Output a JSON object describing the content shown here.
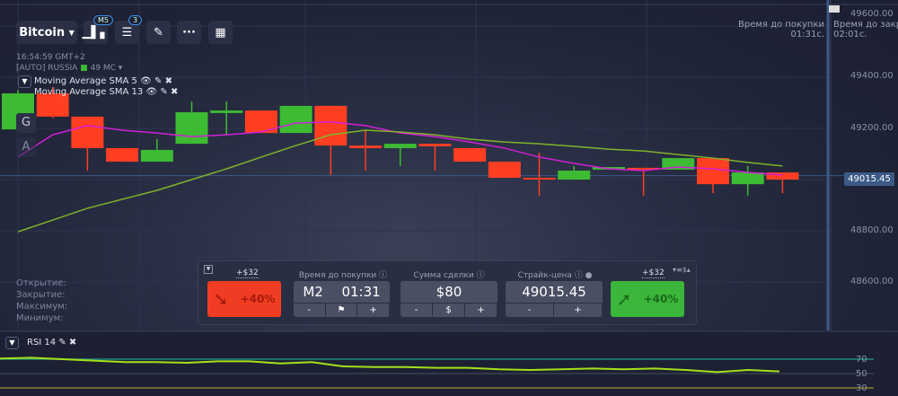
{
  "toolbar": {
    "asset": "Bitcoin",
    "timeframe_badge": "M5",
    "indicators_badge": "3"
  },
  "info": {
    "time": "16:54:59 GMT+2",
    "server": "[AUTO] RUSSIA",
    "ping": "49 MC"
  },
  "indicators": [
    {
      "label": "Moving Average SMA 5",
      "color": "#d21fd6"
    },
    {
      "label": "Moving Average SMA 13",
      "color": "#7fb32a"
    }
  ],
  "side_buttons": [
    "G",
    "A"
  ],
  "ohlc_labels": [
    "Открытие:",
    "Закрытие:",
    "Максимум:",
    "Минимум:"
  ],
  "timers": {
    "buy_label": "Время до покупки",
    "buy_value": "01:31c.",
    "close_label": "Время до закр",
    "close_value": "02:01c."
  },
  "price_axis": [
    "49600.00",
    "49400.00",
    "49200.00",
    "49000.00",
    "48800.00",
    "48600.00"
  ],
  "current_price": "49015.45",
  "panel": {
    "down": {
      "payout": "+$32",
      "percent": "+40%"
    },
    "up": {
      "payout": "+$32",
      "percent": "+40%"
    },
    "time": {
      "label": "Время до покупки",
      "mode": "M2",
      "value": "01:31",
      "minus": "-",
      "plus": "+"
    },
    "amount": {
      "label": "Сумма сделки",
      "value": "$80",
      "minus": "-",
      "mid": "$",
      "plus": "+"
    },
    "strike": {
      "label": "Страйк-цена",
      "value": "49015.45",
      "minus": "-",
      "plus": "+"
    }
  },
  "rsi": {
    "label": "RSI 14",
    "levels": [
      "70",
      "50",
      "30"
    ],
    "values": [
      71,
      72,
      70,
      68,
      66,
      66,
      65,
      67,
      67,
      64,
      66,
      60,
      59,
      59,
      58,
      58,
      56,
      55,
      56,
      57,
      56,
      57,
      55,
      52,
      55,
      53
    ]
  },
  "colors": {
    "up": "#3dbb33",
    "down": "#ff3e22",
    "sma5": "#d21fd6",
    "sma13": "#7fb32a",
    "rsi": "#a4e01a"
  },
  "chart_data": {
    "type": "candlestick",
    "ylim": [
      48450,
      49650
    ],
    "candles": [
      {
        "o": 49196,
        "c": 49337,
        "h": 49350,
        "l": 49190
      },
      {
        "o": 49337,
        "c": 49246,
        "h": 49361,
        "l": 49240
      },
      {
        "o": 49246,
        "c": 49123,
        "h": 49246,
        "l": 49035
      },
      {
        "o": 49123,
        "c": 49070,
        "h": 49123,
        "l": 49070
      },
      {
        "o": 49070,
        "c": 49116,
        "h": 49158,
        "l": 49070
      },
      {
        "o": 49140,
        "c": 49263,
        "h": 49305,
        "l": 49140
      },
      {
        "o": 49260,
        "c": 49270,
        "h": 49305,
        "l": 49175
      },
      {
        "o": 49270,
        "c": 49182,
        "h": 49270,
        "l": 49182
      },
      {
        "o": 49182,
        "c": 49288,
        "h": 49288,
        "l": 49182
      },
      {
        "o": 49288,
        "c": 49133,
        "h": 49288,
        "l": 49018
      },
      {
        "o": 49133,
        "c": 49123,
        "h": 49193,
        "l": 49035
      },
      {
        "o": 49123,
        "c": 49140,
        "h": 49140,
        "l": 49053
      },
      {
        "o": 49140,
        "c": 49130,
        "h": 49140,
        "l": 49035
      },
      {
        "o": 49123,
        "c": 49070,
        "h": 49123,
        "l": 49070
      },
      {
        "o": 49070,
        "c": 49007,
        "h": 49070,
        "l": 49007
      },
      {
        "o": 49007,
        "c": 49000,
        "h": 49105,
        "l": 48937
      },
      {
        "o": 49000,
        "c": 49035,
        "h": 49053,
        "l": 49000
      },
      {
        "o": 49039,
        "c": 49049,
        "h": 49049,
        "l": 49039
      },
      {
        "o": 49046,
        "c": 49039,
        "h": 49046,
        "l": 48937
      },
      {
        "o": 49039,
        "c": 49084,
        "h": 49084,
        "l": 49039
      },
      {
        "o": 49084,
        "c": 48982,
        "h": 49084,
        "l": 48947
      },
      {
        "o": 48982,
        "c": 49028,
        "h": 49053,
        "l": 48937
      },
      {
        "o": 49028,
        "c": 49000,
        "h": 49028,
        "l": 48947
      }
    ],
    "sma5": [
      49088,
      49175,
      49211,
      49193,
      49182,
      49168,
      49175,
      49186,
      49221,
      49225,
      49211,
      49182,
      49168,
      49147,
      49123,
      49088,
      49063,
      49042,
      49035,
      49049,
      49042,
      49028,
      49018
    ],
    "sma13": [
      48796,
      48842,
      48888,
      48923,
      48958,
      49000,
      49042,
      49088,
      49133,
      49175,
      49193,
      49186,
      49175,
      49158,
      49147,
      49140,
      49130,
      49119,
      49112,
      49098,
      49084,
      49067,
      49053
    ]
  }
}
